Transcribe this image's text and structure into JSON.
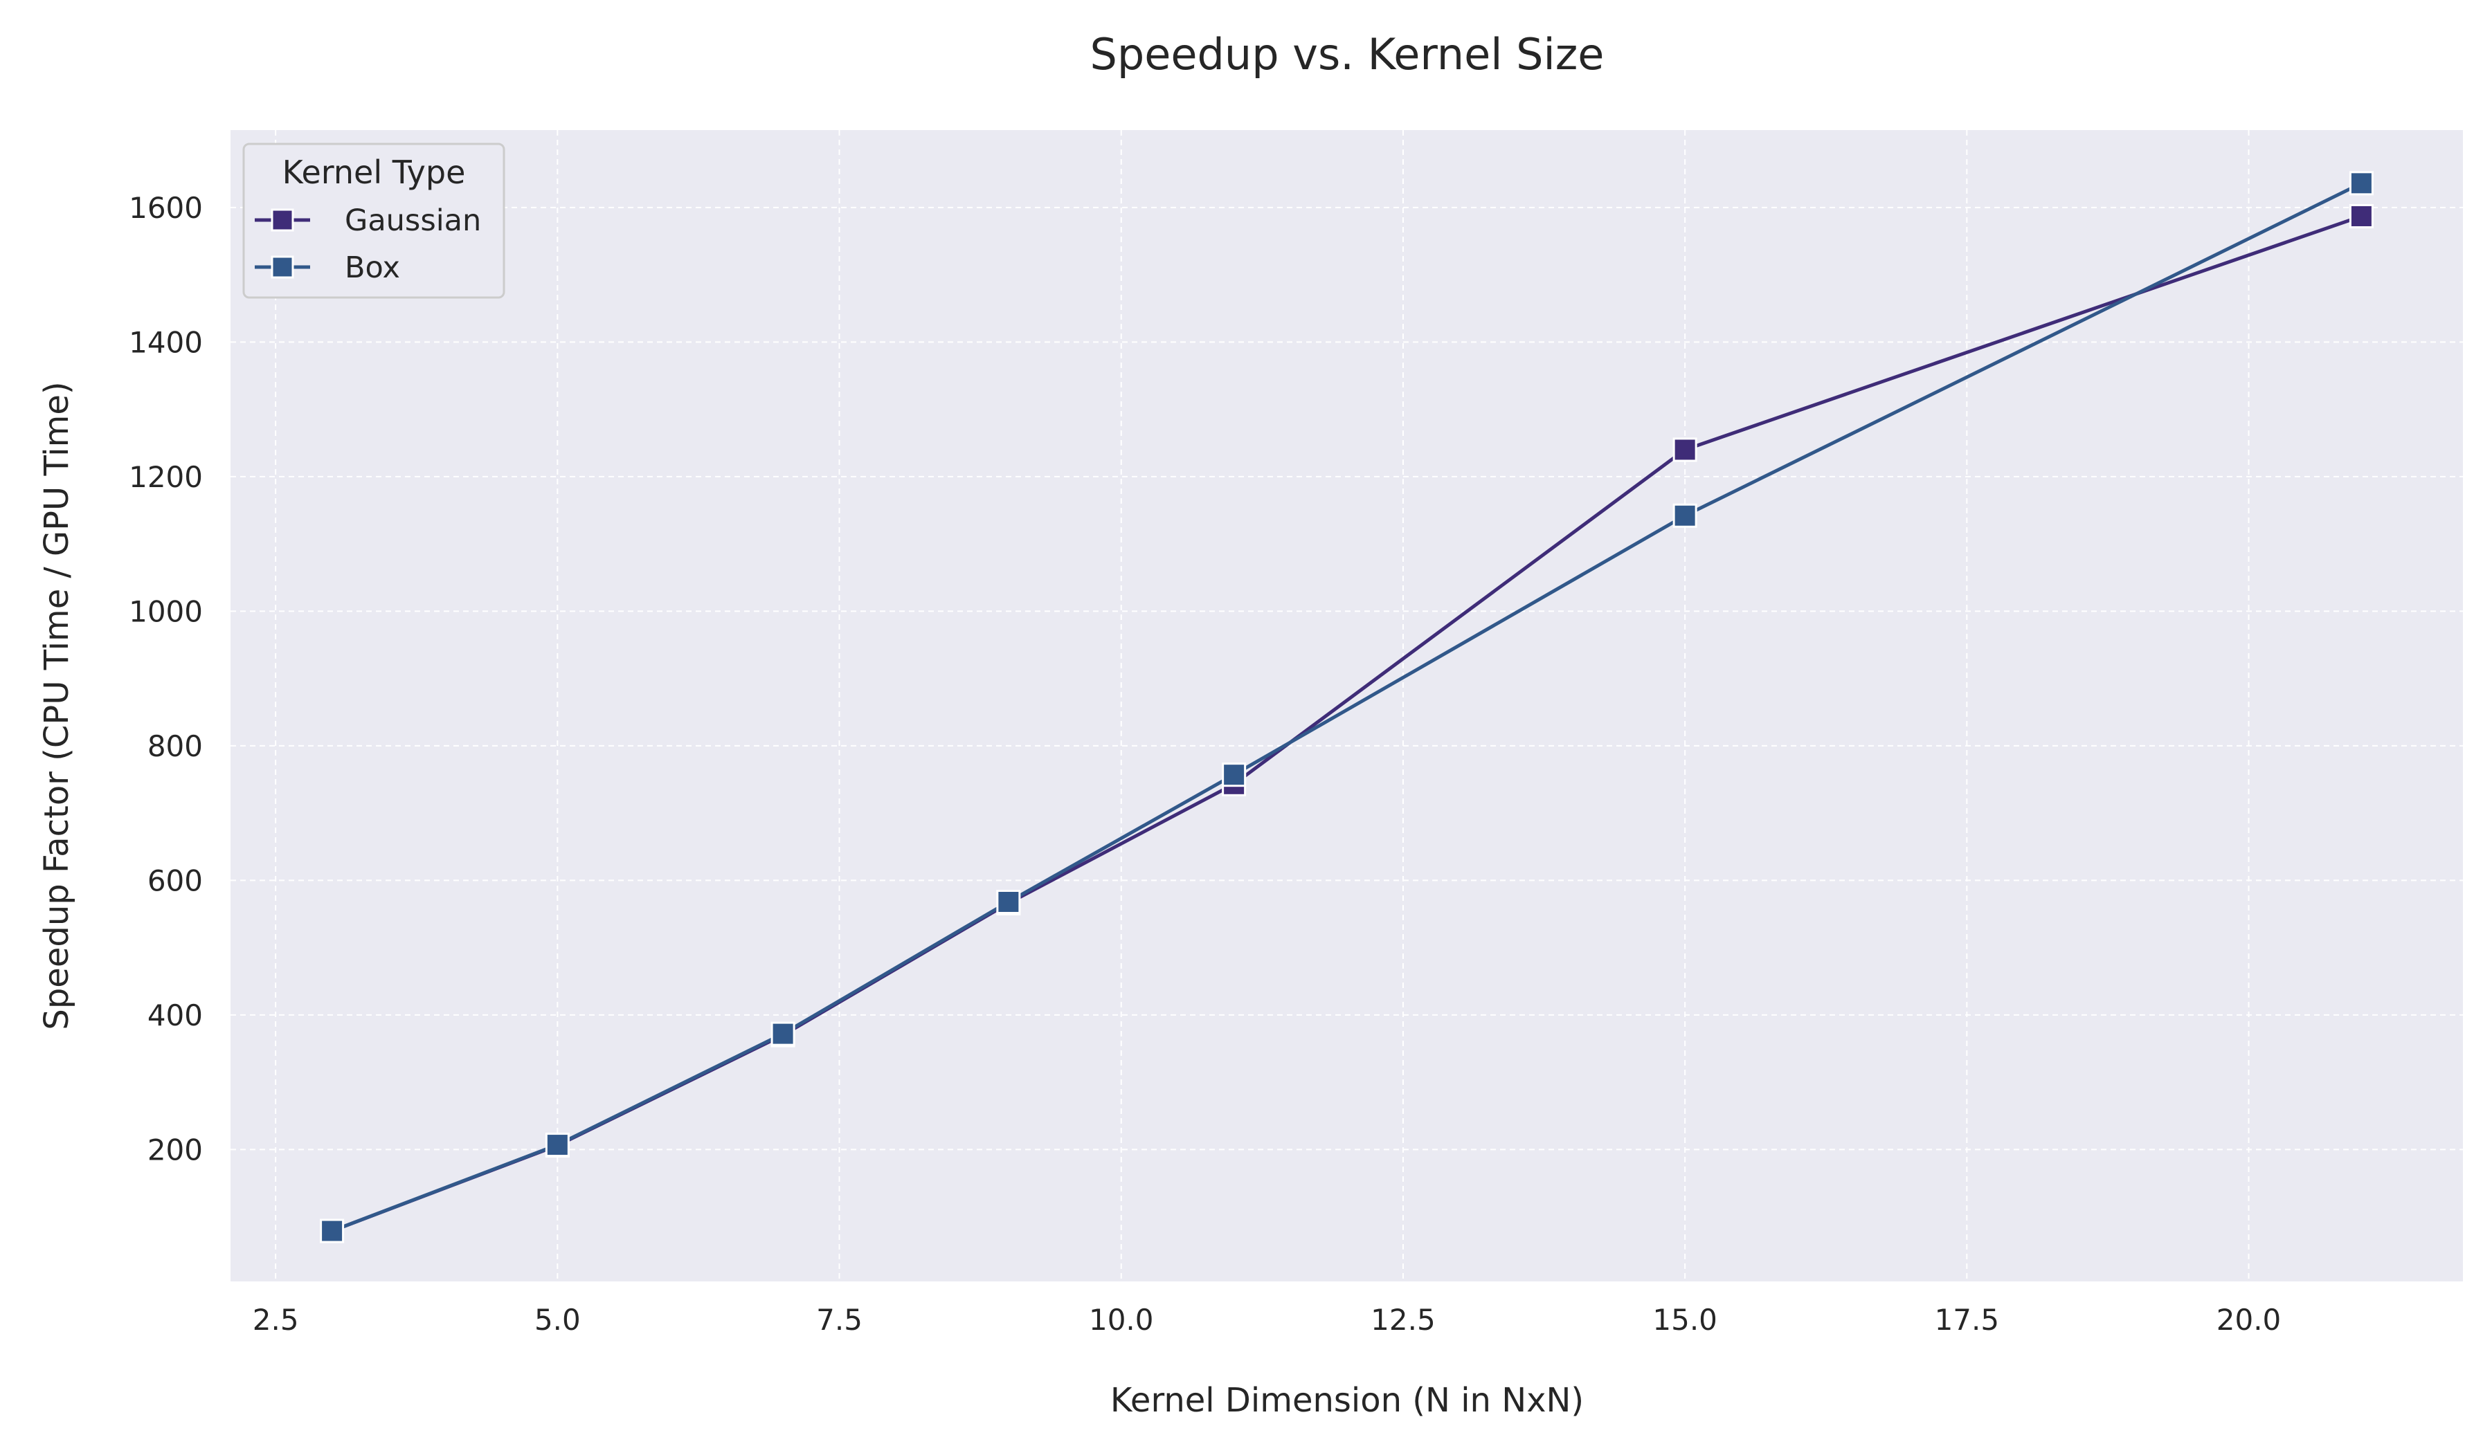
{
  "chart_data": {
    "type": "line",
    "title": "Speedup vs. Kernel Size",
    "xlabel": "Kernel Dimension (N in NxN)",
    "ylabel": "Speedup Factor (CPU Time / GPU Time)",
    "xlim": [
      2.1,
      21.9
    ],
    "ylim": [
      4,
      1715
    ],
    "x_ticks": [
      2.5,
      5.0,
      7.5,
      10.0,
      12.5,
      15.0,
      17.5,
      20.0
    ],
    "x_tick_labels": [
      "2.5",
      "5.0",
      "7.5",
      "10.0",
      "12.5",
      "15.0",
      "17.5",
      "20.0"
    ],
    "y_ticks": [
      200,
      400,
      600,
      800,
      1000,
      1200,
      1400,
      1600
    ],
    "y_tick_labels": [
      "200",
      "400",
      "600",
      "800",
      "1000",
      "1200",
      "1400",
      "1600"
    ],
    "grid": true,
    "legend": {
      "title": "Kernel Type",
      "position": "top-left"
    },
    "x": [
      3,
      5,
      7,
      9,
      11,
      15,
      21
    ],
    "series": [
      {
        "name": "Gaussian",
        "color": "#3f2c78",
        "marker": "square",
        "values": [
          79,
          206,
          370,
          566,
          743,
          1240,
          1587
        ]
      },
      {
        "name": "Box",
        "color": "#31588a",
        "marker": "square",
        "values": [
          79,
          207,
          372,
          568,
          757,
          1142,
          1636
        ]
      }
    ]
  },
  "style": {
    "plot_background": "#eaeaf2",
    "grid_color": "#ffffff",
    "text_color": "#262626"
  }
}
